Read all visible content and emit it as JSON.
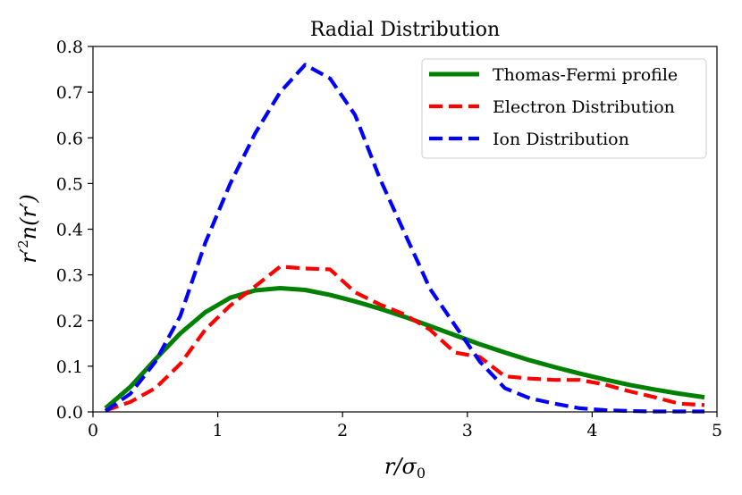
{
  "chart_data": {
    "type": "line",
    "title": "Radial Distribution",
    "xlabel": "r/σ₀",
    "ylabel": "r′²n(r′)",
    "xlim": [
      0,
      5
    ],
    "ylim": [
      0.0,
      0.8
    ],
    "xticks": [
      0,
      1,
      2,
      3,
      4,
      5
    ],
    "xtick_labels": [
      "0",
      "1",
      "2",
      "3",
      "4",
      "5"
    ],
    "yticks": [
      0.0,
      0.1,
      0.2,
      0.3,
      0.4,
      0.5,
      0.6,
      0.7,
      0.8
    ],
    "ytick_labels": [
      "0.0",
      "0.1",
      "0.2",
      "0.3",
      "0.4",
      "0.5",
      "0.6",
      "0.7",
      "0.8"
    ],
    "grid": false,
    "legend_position": "top-right",
    "series": [
      {
        "name": "Thomas-Fermi profile",
        "color": "#008000",
        "style": "solid",
        "x": [
          0.1,
          0.3,
          0.5,
          0.7,
          0.9,
          1.1,
          1.3,
          1.5,
          1.7,
          1.9,
          2.1,
          2.3,
          2.5,
          2.7,
          2.9,
          3.1,
          3.3,
          3.5,
          3.7,
          3.9,
          4.1,
          4.3,
          4.5,
          4.7,
          4.9
        ],
        "y": [
          0.008,
          0.055,
          0.115,
          0.172,
          0.218,
          0.25,
          0.266,
          0.271,
          0.267,
          0.256,
          0.242,
          0.226,
          0.208,
          0.188,
          0.168,
          0.148,
          0.13,
          0.113,
          0.098,
          0.084,
          0.071,
          0.059,
          0.049,
          0.04,
          0.032
        ]
      },
      {
        "name": "Electron Distribution",
        "color": "#ff0000",
        "style": "dashed",
        "x": [
          0.1,
          0.3,
          0.5,
          0.7,
          0.9,
          1.1,
          1.3,
          1.5,
          1.7,
          1.9,
          2.1,
          2.3,
          2.5,
          2.7,
          2.9,
          3.1,
          3.3,
          3.5,
          3.7,
          3.9,
          4.1,
          4.3,
          4.5,
          4.7,
          4.9
        ],
        "y": [
          0.003,
          0.022,
          0.052,
          0.105,
          0.18,
          0.233,
          0.275,
          0.318,
          0.314,
          0.312,
          0.262,
          0.235,
          0.213,
          0.18,
          0.13,
          0.12,
          0.078,
          0.073,
          0.07,
          0.07,
          0.06,
          0.045,
          0.032,
          0.018,
          0.015
        ]
      },
      {
        "name": "Ion Distribution",
        "color": "#0000ff",
        "style": "dashed",
        "x": [
          0.1,
          0.3,
          0.5,
          0.7,
          0.9,
          1.1,
          1.3,
          1.5,
          1.7,
          1.9,
          2.1,
          2.3,
          2.5,
          2.7,
          2.9,
          3.1,
          3.3,
          3.5,
          3.7,
          3.9,
          4.1,
          4.3,
          4.5,
          4.7,
          4.9
        ],
        "y": [
          0.002,
          0.04,
          0.11,
          0.21,
          0.37,
          0.5,
          0.61,
          0.7,
          0.76,
          0.73,
          0.65,
          0.51,
          0.39,
          0.27,
          0.19,
          0.11,
          0.052,
          0.03,
          0.018,
          0.008,
          0.004,
          0.002,
          0.001,
          0.001,
          0.001
        ]
      }
    ]
  }
}
